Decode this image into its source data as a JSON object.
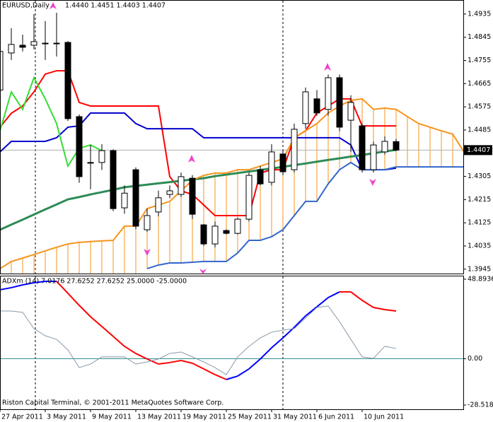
{
  "chart_data": [
    {
      "type": "candlestick",
      "title": "EURUSD,Daily",
      "ohlc_label": "1.4440 1.4451 1.4403 1.4407",
      "categories": [
        "27 Apr 2011",
        null,
        null,
        null,
        "3 May 2011",
        null,
        null,
        null,
        "9 May 2011",
        null,
        null,
        null,
        "13 May 2011",
        null,
        null,
        null,
        "19 May 2011",
        null,
        null,
        null,
        "25 May 2011",
        null,
        null,
        null,
        "31 May 2011",
        null,
        null,
        null,
        "6 Jun 2011",
        null,
        null,
        null,
        "10 Jun 2011",
        null,
        null,
        null,
        null,
        null,
        null,
        null,
        null,
        null
      ],
      "open": [
        1.464,
        1.4784,
        1.4814,
        1.4814,
        1.4822,
        1.4822,
        1.4825,
        1.4537,
        1.4359,
        1.4359,
        1.4405,
        1.4183,
        1.4331,
        1.4098,
        1.4167,
        1.4235,
        1.4235,
        1.4298,
        1.4117,
        1.4043,
        1.4095,
        1.4084,
        1.4139,
        1.4331,
        1.4282,
        1.4392,
        1.4331,
        1.451,
        1.4606,
        1.4565,
        1.4688,
        1.4523,
        1.4501,
        1.4331,
        1.44,
        1.444,
        null,
        null,
        null,
        null,
        null,
        null
      ],
      "high": [
        1.48,
        1.488,
        1.4855,
        1.4935,
        1.4908,
        1.494,
        1.483,
        1.4545,
        1.4427,
        1.443,
        1.441,
        1.427,
        1.434,
        1.418,
        1.425,
        1.427,
        1.432,
        1.431,
        1.412,
        1.413,
        1.41,
        1.4145,
        1.432,
        1.4345,
        1.443,
        1.441,
        1.451,
        1.465,
        1.464,
        1.47,
        1.47,
        1.462,
        1.451,
        1.444,
        1.446,
        1.4451,
        null,
        null,
        null,
        null,
        null,
        null
      ],
      "low": [
        1.462,
        1.4757,
        1.479,
        1.4798,
        1.4757,
        1.477,
        1.452,
        1.428,
        1.4255,
        1.433,
        1.417,
        1.416,
        1.41,
        1.409,
        1.415,
        1.422,
        1.4225,
        1.414,
        1.4035,
        1.403,
        1.408,
        1.408,
        1.413,
        1.427,
        1.427,
        1.431,
        1.432,
        1.449,
        1.454,
        1.454,
        1.448,
        1.44,
        1.432,
        1.432,
        1.439,
        1.4403,
        null,
        null,
        null,
        null,
        null,
        null
      ],
      "close": [
        1.479,
        1.4817,
        1.4806,
        1.4828,
        1.4822,
        1.4822,
        1.4529,
        1.4304,
        1.4359,
        1.4405,
        1.418,
        1.424,
        1.4112,
        1.4153,
        1.4222,
        1.4249,
        1.4304,
        1.4158,
        1.4043,
        1.4112,
        1.4084,
        1.4139,
        1.4309,
        1.4276,
        1.44,
        1.4323,
        1.4488,
        1.4633,
        1.4551,
        1.4688,
        1.4496,
        1.4592,
        1.4331,
        1.4427,
        1.4441,
        1.4407,
        null,
        null,
        null,
        null,
        null,
        null
      ],
      "series": [
        {
          "color": "#ff0000",
          "values": [
            1.4496,
            1.455,
            1.4578,
            1.4633,
            1.4702,
            1.4715,
            1.4715,
            1.4592,
            1.4578,
            1.4578,
            1.4578,
            1.4578,
            1.4578,
            1.4578,
            1.4578,
            1.4304,
            1.4249,
            1.4235,
            1.4194,
            1.4153,
            1.4153,
            1.4153,
            1.4153,
            1.4318,
            1.4331,
            1.4331,
            1.4455,
            1.4482,
            1.4551,
            1.4578,
            1.4606,
            1.4606,
            1.4501,
            1.4501,
            1.4501,
            1.4501,
            null,
            null,
            null,
            null,
            null,
            null
          ]
        },
        {
          "color": "#0000cc",
          "values": [
            1.44,
            1.4441,
            1.4441,
            1.4441,
            1.4441,
            1.4455,
            1.4496,
            1.4501,
            1.4551,
            1.4551,
            1.4551,
            1.4551,
            1.451,
            1.449,
            1.449,
            1.449,
            1.449,
            1.449,
            1.4455,
            1.4455,
            1.4455,
            1.4455,
            1.4455,
            1.4455,
            1.4455,
            1.4455,
            1.4455,
            1.4455,
            1.4455,
            1.4455,
            1.4455,
            1.4427,
            1.4331,
            1.4331,
            1.4331,
            1.4337,
            null,
            null,
            null,
            null,
            null,
            null
          ]
        },
        {
          "color": "#33dd33",
          "values": [
            1.4482,
            1.4633,
            1.4565,
            1.4688,
            1.4606,
            1.451,
            1.4345,
            1.4414,
            1.4427,
            1.4405,
            null,
            null,
            null,
            null,
            null,
            null,
            null,
            null,
            null,
            null,
            null,
            null,
            null,
            null,
            null,
            null,
            null,
            null,
            null,
            null,
            null,
            null,
            null,
            null,
            null,
            null,
            null,
            null,
            null,
            null,
            null,
            null
          ]
        },
        {
          "color": "#2e8b57",
          "width": 3,
          "values": [
            1.4098,
            1.4118,
            1.4137,
            1.4157,
            1.4177,
            1.4196,
            1.4216,
            1.4225,
            1.4235,
            1.4244,
            1.4253,
            1.4263,
            1.4268,
            1.4273,
            1.4278,
            1.4283,
            1.4288,
            1.4293,
            1.4298,
            1.4306,
            1.4312,
            1.4318,
            1.4324,
            1.433,
            1.4336,
            1.4342,
            1.4349,
            1.4355,
            1.4362,
            1.4369,
            1.4375,
            1.4382,
            1.4388,
            1.4395,
            1.4402,
            1.4408,
            null,
            null,
            null,
            null,
            null,
            null
          ]
        },
        {
          "color": "#f7941d",
          "hatch": true,
          "values": [
            1.3947,
            1.3975,
            1.3988,
            1.4002,
            1.4016,
            1.403,
            1.4043,
            1.4049,
            1.4052,
            1.4055,
            1.4057,
            1.4112,
            1.4112,
            1.418,
            1.4194,
            1.4208,
            1.4249,
            1.429,
            1.4309,
            1.4318,
            1.4318,
            1.4331,
            1.4331,
            1.4345,
            1.4359,
            1.4373,
            1.4455,
            1.4482,
            1.451,
            1.4551,
            1.4578,
            1.46,
            1.4606,
            1.4565,
            1.457,
            1.4565,
            1.4537,
            1.451,
            1.4496,
            1.4482,
            1.4469,
            1.44
          ]
        },
        {
          "color": "#3366cc",
          "values": [
            null,
            null,
            null,
            null,
            null,
            null,
            null,
            null,
            null,
            null,
            null,
            null,
            null,
            1.3947,
            1.3961,
            1.3969,
            1.3969,
            1.3972,
            1.3975,
            1.3975,
            1.3975,
            1.4008,
            1.4057,
            1.4057,
            1.4071,
            1.4098,
            1.4153,
            1.4208,
            1.4208,
            1.4276,
            1.4331,
            1.4359,
            1.4331,
            1.4331,
            1.4331,
            1.4342,
            1.4342,
            1.4342,
            1.4342,
            1.4342,
            1.4342,
            1.4342
          ]
        }
      ],
      "current_price": 1.4407,
      "ylim": [
        1.3928,
        1.4984
      ],
      "yticks": [
        1.4935,
        1.4845,
        1.4755,
        1.4665,
        1.4575,
        1.4485,
        1.4305,
        1.4215,
        1.4125,
        1.4035,
        1.3945
      ],
      "footer": "Riston Capital Terminal, © 2001-2011 MetaQuotes Software Corp."
    },
    {
      "type": "line",
      "title": "ADXm (14) 7.0176 27.6252 27.6252 25.0000 -25.0000",
      "series": [
        {
          "values": [
            42.4,
            43.7,
            45.4,
            46.7,
            47.6,
            47.6,
            40.2,
            32.8,
            25.8,
            19.8,
            13.7,
            7.6,
            3.2,
            -0.2,
            -3.3,
            -2.4,
            -1.1,
            -2.8,
            -6.3,
            -9.8,
            -12.8,
            -10.7,
            -6.3,
            -0.2,
            6.7,
            12.8,
            19.3,
            26.3,
            31.9,
            37.6,
            41.1,
            41.1,
            35.9,
            31.5,
            30.2,
            29.3
          ],
          "segment_colors": [
            "#0000ff",
            "#0000ff",
            "#0000ff",
            "#0000ff",
            "#0000ff",
            "#ff0000",
            "#ff0000",
            "#ff0000",
            "#ff0000",
            "#ff0000",
            "#ff0000",
            "#ff0000",
            "#ff0000",
            "#ff0000",
            "#ff0000",
            "#ff0000",
            "#ff0000",
            "#ff0000",
            "#ff0000",
            "#ff0000",
            "#0000ff",
            "#0000ff",
            "#0000ff",
            "#0000ff",
            "#0000ff",
            "#0000ff",
            "#0000ff",
            "#0000ff",
            "#0000ff",
            "#0000ff",
            "#ff0000",
            "#ff0000",
            "#ff0000",
            "#ff0000",
            "#ff0000"
          ]
        },
        {
          "color": "#8899aa",
          "values": [
            29.3,
            29.3,
            28.5,
            18.5,
            14.1,
            11.9,
            5.4,
            -5.5,
            -3.3,
            1.1,
            1.1,
            1.1,
            -3.3,
            -2.0,
            -0.2,
            3.2,
            4.1,
            1.1,
            -2.0,
            -5.5,
            -9.8,
            1.1,
            7.6,
            12.8,
            16.3,
            17.6,
            18.5,
            25.0,
            31.5,
            32.4,
            22.8,
            11.9,
            1.1,
            0.2,
            7.6,
            6.3
          ]
        }
      ],
      "ylim": [
        -28.5188,
        48.8936
      ],
      "yticks": [
        48.8936,
        {
          "value": 0,
          "label": "0.00"
        },
        -28.5188
      ],
      "zero_line_color": "#2a8a8a"
    }
  ]
}
